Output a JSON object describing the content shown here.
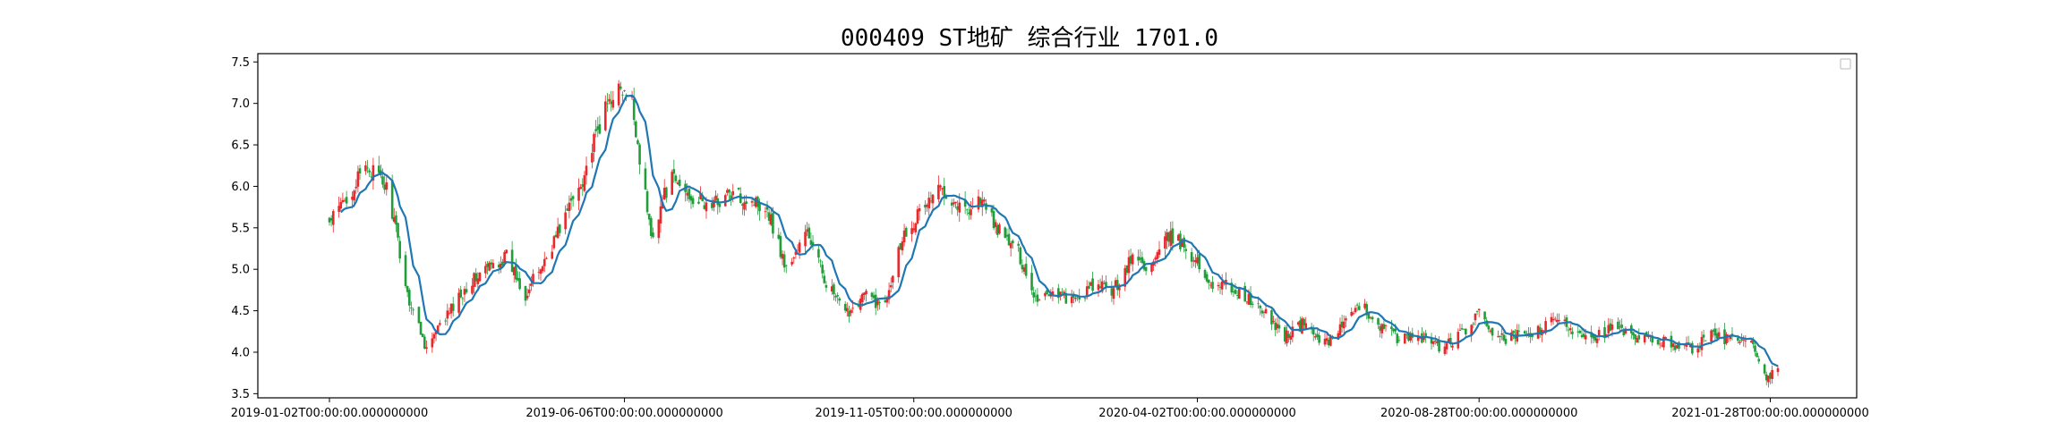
{
  "chart_data": {
    "type": "candlestick",
    "title": "000409 ST地矿 综合行业 1701.0",
    "xlabel": "",
    "ylabel": "",
    "ylim": [
      3.45,
      7.6
    ],
    "yticks": [
      3.5,
      4.0,
      4.5,
      5.0,
      5.5,
      6.0,
      6.5,
      7.0,
      7.5
    ],
    "ytick_labels": [
      "3.5",
      "4.0",
      "4.5",
      "5.0",
      "5.5",
      "6.0",
      "6.5",
      "7.0",
      "7.5"
    ],
    "x_start": "2019-01-02",
    "x_end": "2021-02-01",
    "xticks": [
      "2019-01-02",
      "2019-06-06",
      "2019-11-05",
      "2020-04-02",
      "2020-08-28",
      "2021-01-28"
    ],
    "xtick_labels": [
      "2019-01-02T00:00:00.000000000",
      "2019-06-06T00:00:00.000000000",
      "2019-11-05T00:00:00.000000000",
      "2020-04-02T00:00:00.000000000",
      "2020-08-28T00:00:00.000000000",
      "2021-01-28T00:00:00.000000000"
    ],
    "legend": "top-right",
    "grid": false,
    "colors": {
      "up": "#e8282b",
      "down": "#1f9e3a",
      "ma_line": "#1f77b4"
    },
    "price_path": [
      [
        "2019-01-02",
        5.55
      ],
      [
        "2019-01-12",
        5.9
      ],
      [
        "2019-01-22",
        6.25
      ],
      [
        "2019-02-02",
        5.95
      ],
      [
        "2019-02-12",
        4.7
      ],
      [
        "2019-02-22",
        4.05
      ],
      [
        "2019-03-05",
        4.45
      ],
      [
        "2019-03-15",
        4.8
      ],
      [
        "2019-03-25",
        5.0
      ],
      [
        "2019-04-05",
        5.15
      ],
      [
        "2019-04-15",
        4.7
      ],
      [
        "2019-04-25",
        5.1
      ],
      [
        "2019-05-05",
        5.6
      ],
      [
        "2019-05-15",
        6.1
      ],
      [
        "2019-05-25",
        6.8
      ],
      [
        "2019-06-01",
        7.2
      ],
      [
        "2019-06-10",
        7.0
      ],
      [
        "2019-06-20",
        5.4
      ],
      [
        "2019-06-30",
        6.1
      ],
      [
        "2019-07-10",
        5.9
      ],
      [
        "2019-07-20",
        5.75
      ],
      [
        "2019-07-30",
        5.9
      ],
      [
        "2019-08-10",
        5.85
      ],
      [
        "2019-08-20",
        5.75
      ],
      [
        "2019-08-30",
        5.0
      ],
      [
        "2019-09-10",
        5.45
      ],
      [
        "2019-09-20",
        4.85
      ],
      [
        "2019-09-30",
        4.45
      ],
      [
        "2019-10-10",
        4.7
      ],
      [
        "2019-10-20",
        4.55
      ],
      [
        "2019-10-30",
        5.4
      ],
      [
        "2019-11-10",
        5.75
      ],
      [
        "2019-11-20",
        6.0
      ],
      [
        "2019-12-01",
        5.7
      ],
      [
        "2019-12-10",
        5.85
      ],
      [
        "2019-12-20",
        5.45
      ],
      [
        "2019-12-30",
        5.2
      ],
      [
        "2020-01-08",
        4.65
      ],
      [
        "2020-01-18",
        4.75
      ],
      [
        "2020-01-28",
        4.6
      ],
      [
        "2020-02-08",
        4.8
      ],
      [
        "2020-02-18",
        4.75
      ],
      [
        "2020-02-28",
        5.15
      ],
      [
        "2020-03-08",
        5.0
      ],
      [
        "2020-03-18",
        5.4
      ],
      [
        "2020-03-28",
        5.25
      ],
      [
        "2020-04-08",
        4.85
      ],
      [
        "2020-04-18",
        4.8
      ],
      [
        "2020-04-28",
        4.65
      ],
      [
        "2020-05-08",
        4.45
      ],
      [
        "2020-05-18",
        4.2
      ],
      [
        "2020-05-28",
        4.35
      ],
      [
        "2020-06-08",
        4.1
      ],
      [
        "2020-06-18",
        4.35
      ],
      [
        "2020-06-28",
        4.55
      ],
      [
        "2020-07-08",
        4.3
      ],
      [
        "2020-07-18",
        4.15
      ],
      [
        "2020-07-28",
        4.2
      ],
      [
        "2020-08-08",
        4.05
      ],
      [
        "2020-08-18",
        4.2
      ],
      [
        "2020-08-28",
        4.45
      ],
      [
        "2020-09-08",
        4.15
      ],
      [
        "2020-09-18",
        4.2
      ],
      [
        "2020-09-28",
        4.25
      ],
      [
        "2020-10-08",
        4.4
      ],
      [
        "2020-10-18",
        4.25
      ],
      [
        "2020-10-28",
        4.2
      ],
      [
        "2020-11-08",
        4.3
      ],
      [
        "2020-11-18",
        4.15
      ],
      [
        "2020-11-28",
        4.15
      ],
      [
        "2020-12-08",
        4.1
      ],
      [
        "2020-12-18",
        4.05
      ],
      [
        "2020-12-28",
        4.2
      ],
      [
        "2021-01-08",
        4.15
      ],
      [
        "2021-01-18",
        4.1
      ],
      [
        "2021-01-24",
        3.7
      ],
      [
        "2021-01-28",
        3.7
      ],
      [
        "2021-02-01",
        3.8
      ]
    ]
  }
}
